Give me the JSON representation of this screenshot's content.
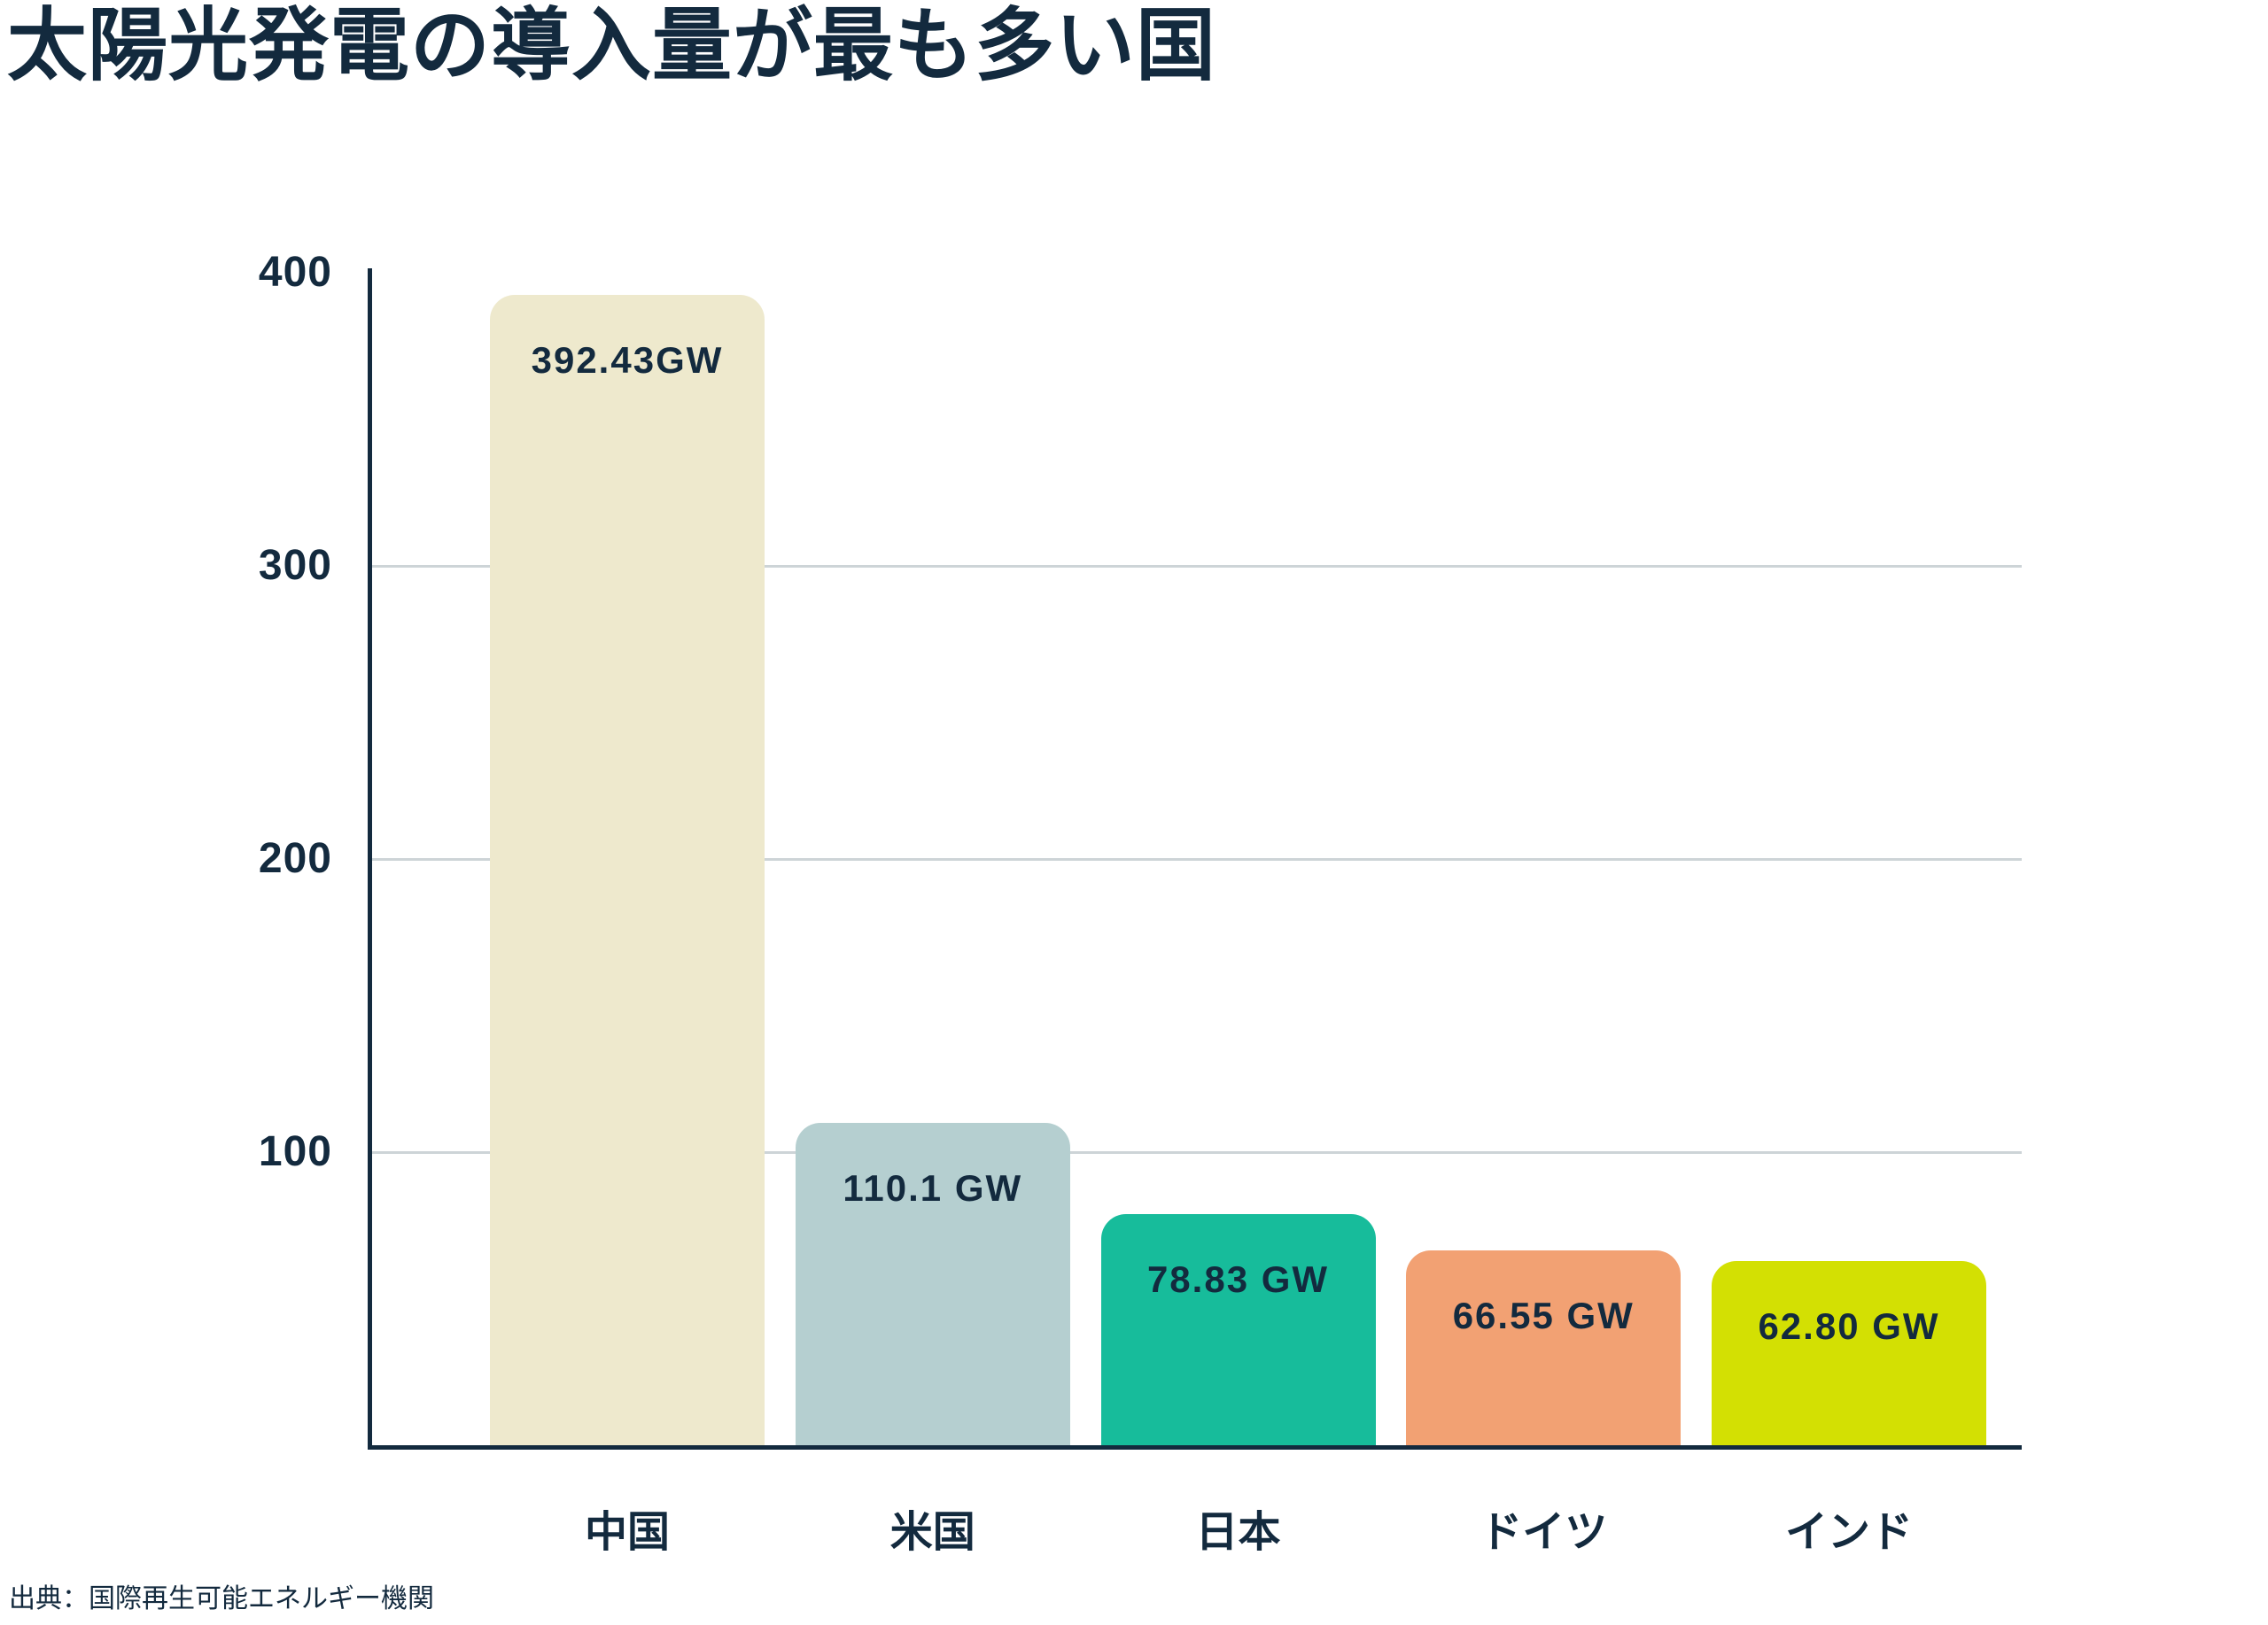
{
  "page": {
    "title": "太陽光発電の導入量が最も多い国",
    "source": "出典：国際再生可能エネルギー機関"
  },
  "chart_data": {
    "type": "bar",
    "title": "太陽光発電の導入量が最も多い国",
    "categories": [
      "中国",
      "米国",
      "日本",
      "ドイツ",
      "インド"
    ],
    "values": [
      392.43,
      110.1,
      78.83,
      66.55,
      62.8
    ],
    "bar_labels": [
      "392.43GW",
      "110.1 GW",
      "78.83 GW",
      "66.55 GW",
      "62.80 GW"
    ],
    "bar_colors": [
      "#EEE9CD",
      "#B5CFD0",
      "#17BC9B",
      "#F2A173",
      "#D3E003"
    ],
    "unit": "GW",
    "xlabel": "",
    "ylabel": "",
    "ylim": [
      0,
      400
    ],
    "y_ticks": [
      400,
      300,
      200,
      100
    ],
    "gridlines": [
      300,
      200,
      100
    ],
    "grid": "horizontal-only",
    "legend": "none",
    "source": "出典：国際再生可能エネルギー機関",
    "colors": {
      "text": "#132A3E",
      "axis": "#132A3E",
      "gridline": "#CDD4D7",
      "background": "#FFFFFF"
    }
  }
}
